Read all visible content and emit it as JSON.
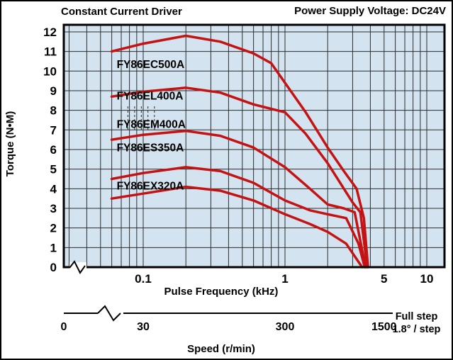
{
  "theme": {
    "plot_bg": "#d3e4f0",
    "grid_color": "#2b2b2b",
    "curve_color": "#c51212",
    "frame_color": "#000000"
  },
  "header": {
    "left_title": "Constant Current Driver",
    "right_title": "Power Supply Voltage: DC24V"
  },
  "axes": {
    "y_label": "Torque (N•M)",
    "x_label": "Pulse Frequency (kHz)",
    "speed_label": "Speed (r/min)",
    "full_step_line1": "Full step",
    "full_step_line2": "1.8° / step"
  },
  "chart_data": {
    "type": "line",
    "title": "Constant Current Driver",
    "subtitle": "Power Supply Voltage: DC24V",
    "xlabel": "Pulse Frequency (kHz)",
    "ylabel": "Torque (N•M)",
    "x_scale": "log",
    "xlim": [
      0.03,
      13
    ],
    "ylim": [
      0,
      12
    ],
    "grid": true,
    "legend_position": "inline-labels",
    "y_ticks": [
      0,
      1,
      2,
      3,
      4,
      5,
      6,
      7,
      8,
      9,
      10,
      11,
      12
    ],
    "x_ticks": [
      {
        "v": 0.1,
        "label": "0.1"
      },
      {
        "v": 1,
        "label": "1"
      },
      {
        "v": 5,
        "label": "5"
      },
      {
        "v": 10,
        "label": "10"
      }
    ],
    "speed_axis": {
      "unit": "r/min",
      "ticks": [
        {
          "v": 0,
          "label": "0"
        },
        {
          "v": 0.1,
          "label": "30"
        },
        {
          "v": 1,
          "label": "300"
        },
        {
          "v": 5,
          "label": "1500"
        }
      ]
    },
    "series": [
      {
        "name": "FY86EC500A",
        "label_pos": [
          0.065,
          10.15
        ],
        "points": [
          [
            0.06,
            11.0
          ],
          [
            0.1,
            11.4
          ],
          [
            0.2,
            11.8
          ],
          [
            0.35,
            11.5
          ],
          [
            0.6,
            10.9
          ],
          [
            0.8,
            10.4
          ],
          [
            1,
            9.4
          ],
          [
            1.4,
            7.9
          ],
          [
            2,
            6.1
          ],
          [
            2.6,
            4.9
          ],
          [
            3.2,
            4.0
          ],
          [
            3.6,
            2.5
          ],
          [
            3.85,
            0
          ]
        ]
      },
      {
        "name": "FY86EL400A",
        "label_pos": [
          0.065,
          8.55
        ],
        "points": [
          [
            0.06,
            8.7
          ],
          [
            0.1,
            8.95
          ],
          [
            0.2,
            9.15
          ],
          [
            0.35,
            8.9
          ],
          [
            0.6,
            8.3
          ],
          [
            1,
            7.9
          ],
          [
            1.4,
            6.8
          ],
          [
            2,
            5.3
          ],
          [
            2.5,
            4.2
          ],
          [
            3,
            3.3
          ],
          [
            3.4,
            2.8
          ],
          [
            3.8,
            0
          ]
        ]
      },
      {
        "name": "FY86EM400A",
        "label_pos": [
          0.065,
          7.1
        ],
        "points": [
          [
            0.06,
            6.5
          ],
          [
            0.1,
            6.75
          ],
          [
            0.2,
            6.95
          ],
          [
            0.35,
            6.7
          ],
          [
            0.6,
            6.1
          ],
          [
            1,
            5.1
          ],
          [
            1.5,
            4.0
          ],
          [
            2,
            3.2
          ],
          [
            2.6,
            3.0
          ],
          [
            3.1,
            2.8
          ],
          [
            3.7,
            0
          ]
        ]
      },
      {
        "name": "FY86ES350A",
        "label_pos": [
          0.065,
          5.9
        ],
        "points": [
          [
            0.06,
            4.5
          ],
          [
            0.1,
            4.8
          ],
          [
            0.2,
            5.1
          ],
          [
            0.35,
            4.9
          ],
          [
            0.6,
            4.3
          ],
          [
            1,
            3.4
          ],
          [
            1.5,
            2.9
          ],
          [
            2,
            2.7
          ],
          [
            2.7,
            2.5
          ],
          [
            3.3,
            1.2
          ],
          [
            3.65,
            0
          ]
        ]
      },
      {
        "name": "FY86EX320A",
        "label_pos": [
          0.065,
          3.95
        ],
        "points": [
          [
            0.06,
            3.5
          ],
          [
            0.1,
            3.75
          ],
          [
            0.2,
            4.1
          ],
          [
            0.35,
            3.9
          ],
          [
            0.6,
            3.4
          ],
          [
            1,
            2.7
          ],
          [
            1.5,
            2.2
          ],
          [
            2,
            1.8
          ],
          [
            2.7,
            1.2
          ],
          [
            3.5,
            0
          ]
        ]
      }
    ]
  }
}
